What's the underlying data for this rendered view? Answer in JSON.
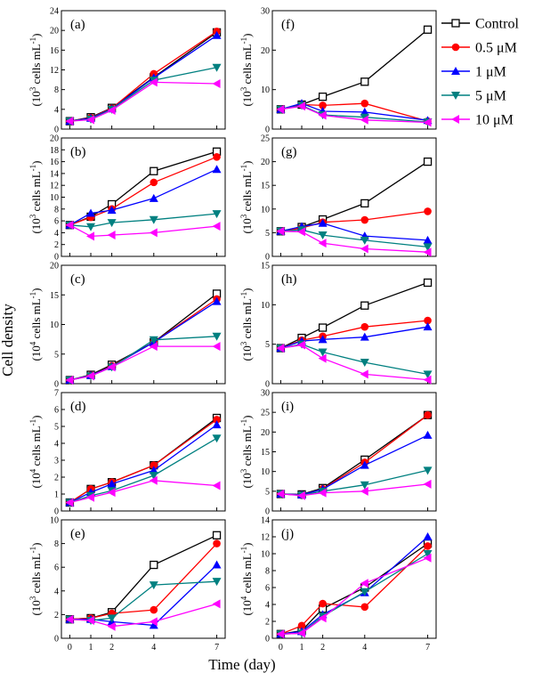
{
  "figure": {
    "y_label": "Cell density",
    "x_label": "Time (day)",
    "legend": [
      {
        "name": "Control",
        "color": "#000000",
        "marker": "square-open"
      },
      {
        "name": "0.5 μM",
        "color": "#ff0000",
        "marker": "circle"
      },
      {
        "name": "1 μM",
        "color": "#0000ff",
        "marker": "triangle-up"
      },
      {
        "name": "5 μM",
        "color": "#008080",
        "marker": "triangle-down"
      },
      {
        "name": "10 μM",
        "color": "#ff00ff",
        "marker": "triangle-left"
      }
    ]
  },
  "chart_data": [
    {
      "id": "a",
      "type": "line",
      "label": "(a)",
      "ylabel_pre": "(10",
      "ylabel_exp": "3",
      "ylabel_post": " cells mL",
      "ylabel_exp2": "-1",
      "ylabel_close": ")",
      "ylim": [
        0,
        24
      ],
      "yticks": [
        0,
        4,
        8,
        12,
        16,
        20,
        24
      ],
      "ytick_labels": [
        "0",
        "4",
        "8",
        "12",
        "16",
        "20",
        "24"
      ],
      "x": [
        0,
        1,
        2,
        4,
        7
      ],
      "series": [
        {
          "name": "Control",
          "values": [
            1.6,
            2.4,
            4.3,
            10.5,
            19.6
          ]
        },
        {
          "name": "0.5 μM",
          "values": [
            1.6,
            2.3,
            4.2,
            11.2,
            19.8
          ]
        },
        {
          "name": "1 μM",
          "values": [
            1.6,
            2.2,
            4.1,
            10.4,
            19.0
          ]
        },
        {
          "name": "5 μM",
          "values": [
            1.6,
            2.0,
            4.0,
            9.9,
            12.5
          ]
        },
        {
          "name": "10 μM",
          "values": [
            1.6,
            1.9,
            3.8,
            9.5,
            9.2
          ]
        }
      ]
    },
    {
      "id": "b",
      "type": "line",
      "label": "(b)",
      "ylabel_pre": "(10",
      "ylabel_exp": "3",
      "ylabel_post": " cells mL",
      "ylabel_exp2": "-1",
      "ylabel_close": ")",
      "ylim": [
        0,
        20
      ],
      "yticks": [
        0,
        2,
        4,
        6,
        8,
        10,
        12,
        14,
        16,
        18,
        20
      ],
      "ytick_labels": [
        "0",
        "2",
        "4",
        "6",
        "8",
        "10",
        "12",
        "14",
        "16",
        "18",
        "20"
      ],
      "x": [
        0,
        1,
        2,
        4,
        7
      ],
      "series": [
        {
          "name": "Control",
          "values": [
            5.3,
            6.7,
            8.8,
            14.4,
            17.7
          ]
        },
        {
          "name": "0.5 μM",
          "values": [
            5.3,
            6.6,
            8.0,
            12.5,
            16.8
          ]
        },
        {
          "name": "1 μM",
          "values": [
            5.3,
            7.3,
            7.8,
            9.8,
            14.7
          ]
        },
        {
          "name": "5 μM",
          "values": [
            5.3,
            5.0,
            5.7,
            6.2,
            7.2
          ]
        },
        {
          "name": "10 μM",
          "values": [
            5.3,
            3.4,
            3.6,
            4.0,
            5.1
          ]
        }
      ]
    },
    {
      "id": "c",
      "type": "line",
      "label": "(c)",
      "ylabel_pre": "(10",
      "ylabel_exp": "4",
      "ylabel_post": " cells mL",
      "ylabel_exp2": "-1",
      "ylabel_close": ")",
      "ylim": [
        0,
        20
      ],
      "yticks": [
        0,
        5,
        10,
        15,
        20
      ],
      "ytick_labels": [
        "0",
        "5",
        "10",
        "15",
        "20"
      ],
      "x": [
        0,
        1,
        2,
        4,
        7
      ],
      "series": [
        {
          "name": "Control",
          "values": [
            0.6,
            1.5,
            3.2,
            7.0,
            15.2
          ]
        },
        {
          "name": "0.5 μM",
          "values": [
            0.6,
            1.4,
            3.0,
            7.0,
            14.3
          ]
        },
        {
          "name": "1 μM",
          "values": [
            0.6,
            1.4,
            2.9,
            7.0,
            13.9
          ]
        },
        {
          "name": "5 μM",
          "values": [
            0.6,
            1.3,
            2.8,
            7.4,
            8.0
          ]
        },
        {
          "name": "10 μM",
          "values": [
            0.6,
            1.3,
            2.8,
            6.3,
            6.3
          ]
        }
      ]
    },
    {
      "id": "d",
      "type": "line",
      "label": "(d)",
      "ylabel_pre": "(10",
      "ylabel_exp": "4",
      "ylabel_post": " cells mL",
      "ylabel_exp2": "-1",
      "ylabel_close": ")",
      "ylim": [
        0,
        7
      ],
      "yticks": [
        0,
        1,
        2,
        3,
        4,
        5,
        6,
        7
      ],
      "ytick_labels": [
        "0",
        "1",
        "2",
        "3",
        "4",
        "5",
        "6",
        "7"
      ],
      "x": [
        0,
        1,
        2,
        4,
        7
      ],
      "series": [
        {
          "name": "Control",
          "values": [
            0.5,
            1.3,
            1.7,
            2.7,
            5.5
          ]
        },
        {
          "name": "0.5 μM",
          "values": [
            0.5,
            1.3,
            1.7,
            2.7,
            5.4
          ]
        },
        {
          "name": "1 μM",
          "values": [
            0.5,
            1.1,
            1.6,
            2.4,
            5.1
          ]
        },
        {
          "name": "5 μM",
          "values": [
            0.5,
            0.9,
            1.2,
            2.1,
            4.3
          ]
        },
        {
          "name": "10 μM",
          "values": [
            0.5,
            0.8,
            1.1,
            1.8,
            1.5
          ]
        }
      ]
    },
    {
      "id": "e",
      "type": "line",
      "label": "(e)",
      "ylabel_pre": "(10",
      "ylabel_exp": "3",
      "ylabel_post": " cells mL",
      "ylabel_exp2": "-1",
      "ylabel_close": ")",
      "ylim": [
        0,
        10
      ],
      "yticks": [
        0,
        2,
        4,
        6,
        8,
        10
      ],
      "ytick_labels": [
        "0",
        "2",
        "4",
        "6",
        "8",
        "10"
      ],
      "x": [
        0,
        1,
        2,
        4,
        7
      ],
      "series": [
        {
          "name": "Control",
          "values": [
            1.6,
            1.7,
            2.2,
            6.2,
            8.7
          ]
        },
        {
          "name": "0.5 μM",
          "values": [
            1.6,
            1.7,
            2.1,
            2.4,
            8.0
          ]
        },
        {
          "name": "1 μM",
          "values": [
            1.6,
            1.6,
            1.4,
            1.1,
            6.2
          ]
        },
        {
          "name": "5 μM",
          "values": [
            1.6,
            1.5,
            1.7,
            4.5,
            4.8
          ]
        },
        {
          "name": "10 μM",
          "values": [
            1.6,
            1.5,
            1.0,
            1.4,
            2.9
          ]
        }
      ]
    },
    {
      "id": "f",
      "type": "line",
      "label": "(f)",
      "ylabel_pre": "(10",
      "ylabel_exp": "3",
      "ylabel_post": " cells mL",
      "ylabel_exp2": "-1",
      "ylabel_close": ")",
      "ylim": [
        0,
        30
      ],
      "yticks": [
        0,
        10,
        20,
        30
      ],
      "ytick_labels": [
        "0",
        "10",
        "20",
        "30"
      ],
      "x": [
        0,
        1,
        2,
        4,
        7
      ],
      "series": [
        {
          "name": "Control",
          "values": [
            5.0,
            6.2,
            8.2,
            12.0,
            25.2
          ]
        },
        {
          "name": "0.5 μM",
          "values": [
            5.0,
            6.2,
            6.0,
            6.5,
            2.0
          ]
        },
        {
          "name": "1 μM",
          "values": [
            5.0,
            6.5,
            4.5,
            4.3,
            2.2
          ]
        },
        {
          "name": "5 μM",
          "values": [
            5.0,
            6.0,
            3.6,
            3.0,
            1.8
          ]
        },
        {
          "name": "10 μM",
          "values": [
            5.0,
            5.8,
            3.5,
            2.3,
            1.7
          ]
        }
      ]
    },
    {
      "id": "g",
      "type": "line",
      "label": "(g)",
      "ylabel_pre": "(10",
      "ylabel_exp": "3",
      "ylabel_post": " cells mL",
      "ylabel_exp2": "-1",
      "ylabel_close": ")",
      "ylim": [
        0,
        25
      ],
      "yticks": [
        0,
        5,
        10,
        15,
        20,
        25
      ],
      "ytick_labels": [
        "0",
        "5",
        "10",
        "15",
        "20",
        "25"
      ],
      "x": [
        0,
        1,
        2,
        4,
        7
      ],
      "series": [
        {
          "name": "Control",
          "values": [
            5.3,
            6.2,
            7.8,
            11.2,
            20.0
          ]
        },
        {
          "name": "0.5 μM",
          "values": [
            5.3,
            6.0,
            7.2,
            7.7,
            9.5
          ]
        },
        {
          "name": "1 μM",
          "values": [
            5.3,
            6.3,
            7.0,
            4.3,
            3.4
          ]
        },
        {
          "name": "5 μM",
          "values": [
            5.3,
            5.6,
            4.5,
            3.4,
            2.0
          ]
        },
        {
          "name": "10 μM",
          "values": [
            5.3,
            5.2,
            2.8,
            1.6,
            0.9
          ]
        }
      ]
    },
    {
      "id": "h",
      "type": "line",
      "label": "(h)",
      "ylabel_pre": "(10",
      "ylabel_exp": "3",
      "ylabel_post": " cells mL",
      "ylabel_exp2": "-1",
      "ylabel_close": ")",
      "ylim": [
        0,
        15
      ],
      "yticks": [
        0,
        5,
        10,
        15
      ],
      "ytick_labels": [
        "0",
        "5",
        "10",
        "15"
      ],
      "x": [
        0,
        1,
        2,
        4,
        7
      ],
      "series": [
        {
          "name": "Control",
          "values": [
            4.5,
            5.8,
            7.1,
            9.9,
            12.8
          ]
        },
        {
          "name": "0.5 μM",
          "values": [
            4.5,
            5.5,
            6.0,
            7.2,
            8.0
          ]
        },
        {
          "name": "1 μM",
          "values": [
            4.5,
            5.4,
            5.6,
            5.9,
            7.2
          ]
        },
        {
          "name": "5 μM",
          "values": [
            4.5,
            5.0,
            4.0,
            2.7,
            1.2
          ]
        },
        {
          "name": "10 μM",
          "values": [
            4.5,
            4.9,
            3.2,
            1.2,
            0.5
          ]
        }
      ]
    },
    {
      "id": "i",
      "type": "line",
      "label": "(i)",
      "ylabel_pre": "(10",
      "ylabel_exp": "3",
      "ylabel_post": " cells mL",
      "ylabel_exp2": "-1",
      "ylabel_close": ")",
      "ylim": [
        0,
        30
      ],
      "yticks": [
        0,
        5,
        10,
        15,
        20,
        25,
        30
      ],
      "ytick_labels": [
        "0",
        "5",
        "10",
        "15",
        "20",
        "25",
        "30"
      ],
      "x": [
        0,
        1,
        2,
        4,
        7
      ],
      "series": [
        {
          "name": "Control",
          "values": [
            4.3,
            4.2,
            5.8,
            13.0,
            24.3
          ]
        },
        {
          "name": "0.5 μM",
          "values": [
            4.3,
            4.0,
            5.6,
            12.3,
            24.3
          ]
        },
        {
          "name": "1 μM",
          "values": [
            4.3,
            4.1,
            5.5,
            11.6,
            19.2
          ]
        },
        {
          "name": "5 μM",
          "values": [
            4.3,
            4.0,
            5.0,
            6.6,
            10.3
          ]
        },
        {
          "name": "10 μM",
          "values": [
            4.3,
            3.9,
            4.6,
            5.0,
            6.8
          ]
        }
      ]
    },
    {
      "id": "j",
      "type": "line",
      "label": "(j)",
      "ylabel_pre": "(10",
      "ylabel_exp": "4",
      "ylabel_post": " cells mL",
      "ylabel_exp2": "-1",
      "ylabel_close": ")",
      "ylim": [
        0,
        14
      ],
      "yticks": [
        0,
        2,
        4,
        6,
        8,
        10,
        12,
        14
      ],
      "ytick_labels": [
        "0",
        "2",
        "4",
        "6",
        "8",
        "10",
        "12",
        "14"
      ],
      "x": [
        0,
        1,
        2,
        4,
        7
      ],
      "series": [
        {
          "name": "Control",
          "values": [
            0.5,
            0.9,
            3.5,
            6.0,
            11.2
          ]
        },
        {
          "name": "0.5 μM",
          "values": [
            0.5,
            1.5,
            4.1,
            3.7,
            10.9
          ]
        },
        {
          "name": "1 μM",
          "values": [
            0.5,
            0.8,
            2.8,
            5.4,
            12.0
          ]
        },
        {
          "name": "5 μM",
          "values": [
            0.5,
            0.6,
            2.6,
            5.5,
            10.0
          ]
        },
        {
          "name": "10 μM",
          "values": [
            0.5,
            0.6,
            2.4,
            6.5,
            9.5
          ]
        }
      ]
    }
  ],
  "x_axis": {
    "ticks": [
      0,
      1,
      2,
      4,
      7
    ],
    "tick_labels": [
      "0",
      "1",
      "2",
      "4",
      "7"
    ]
  }
}
